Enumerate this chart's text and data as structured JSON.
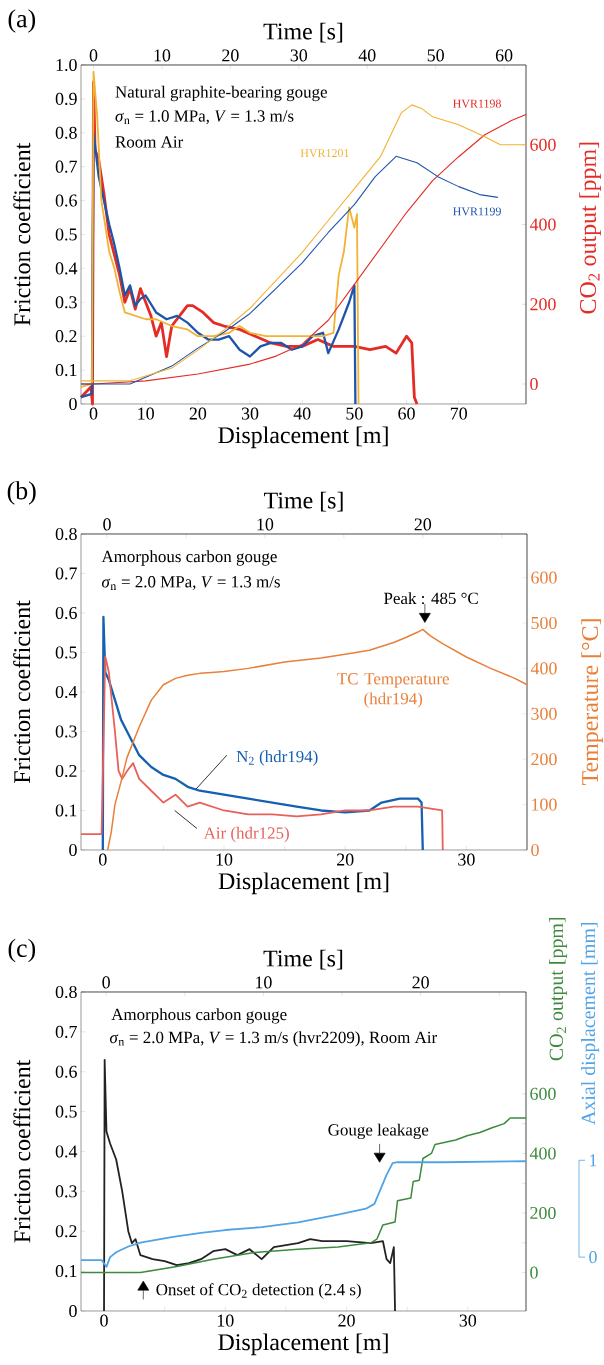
{
  "chart_data": [
    {
      "type": "line",
      "title": "(a)",
      "xlabel": "Displacement [m]",
      "x2label": "Time [s]",
      "ylabel": "Friction coefficient",
      "y2label": "CO$_{2}$ output [ppm]",
      "xlim": [
        -2.4,
        82.9
      ],
      "xticks": [
        0,
        10,
        20,
        30,
        40,
        50,
        60,
        70
      ],
      "x2lim": [
        -1.83,
        63.2
      ],
      "x2ticks": [
        0,
        10,
        20,
        30,
        40,
        50,
        60
      ],
      "ylim": [
        0,
        1
      ],
      "yticks": [
        0,
        0.1,
        0.2,
        0.3,
        0.4,
        0.5,
        0.6,
        0.7,
        0.8,
        0.9,
        {
          "value": 1,
          "label": "1.0"
        }
      ],
      "y2lim": [
        -50,
        800
      ],
      "y2ticks": [
        0,
        200,
        400,
        600
      ],
      "annotations": [
        "Natural graphite-bearing gouge",
        "*σ*$_{n}$ = 1.0 MPa, *V* = 1.3 m/s",
        "Room Air"
      ],
      "series": [
        {
          "color": "#e42b25",
          "x": [
            -2.4,
            -0.5,
            -0.2,
            0,
            0.3,
            1,
            2,
            3,
            4,
            5,
            6,
            7,
            8,
            9,
            10,
            11,
            12,
            13,
            14,
            15,
            17,
            18,
            19,
            21,
            23,
            25,
            28,
            31,
            34,
            37,
            40,
            43,
            46,
            50,
            53,
            56,
            58,
            60,
            61,
            61.5,
            62
          ],
          "values": [
            0.02,
            0.05,
            0,
            0.95,
            0.75,
            0.72,
            0.62,
            0.5,
            0.44,
            0.38,
            0.3,
            0.34,
            0.28,
            0.34,
            0.3,
            0.26,
            0.2,
            0.24,
            0.14,
            0.23,
            0.27,
            0.29,
            0.29,
            0.27,
            0.24,
            0.23,
            0.22,
            0.2,
            0.18,
            0.17,
            0.17,
            0.19,
            0.17,
            0.17,
            0.16,
            0.17,
            0.15,
            0.2,
            0.18,
            0.02,
            0
          ]
        },
        {
          "color": "#1f55a8",
          "x": [
            -2.4,
            -0.3,
            0,
            1,
            2,
            3,
            4,
            5,
            6,
            7,
            8,
            9,
            10,
            12,
            14,
            16,
            18,
            20,
            22,
            24,
            26,
            28,
            30,
            32,
            34,
            36,
            38,
            40,
            42,
            44,
            45,
            47,
            49,
            50,
            50.2
          ],
          "values": [
            0.02,
            0.03,
            0.8,
            0.67,
            0.6,
            0.53,
            0.47,
            0.4,
            0.32,
            0.35,
            0.29,
            0.31,
            0.32,
            0.27,
            0.25,
            0.26,
            0.24,
            0.21,
            0.19,
            0.19,
            0.2,
            0.16,
            0.14,
            0.17,
            0.18,
            0.18,
            0.16,
            0.17,
            0.2,
            0.21,
            0.15,
            0.22,
            0.3,
            0.35,
            0
          ]
        },
        {
          "color": "#f2b233",
          "x": [
            -2.4,
            -0.3,
            0,
            0.7,
            1.5,
            3,
            4,
            5,
            6,
            8,
            10,
            12,
            15,
            18,
            20,
            23,
            26,
            28,
            30,
            33,
            36,
            40,
            44,
            46,
            47,
            48,
            49,
            50,
            50.5,
            50.8
          ],
          "values": [
            0.05,
            0.06,
            0.98,
            0.85,
            0.6,
            0.45,
            0.4,
            0.33,
            0.27,
            0.26,
            0.25,
            0.25,
            0.23,
            0.22,
            0.2,
            0.2,
            0.21,
            0.23,
            0.21,
            0.2,
            0.2,
            0.2,
            0.2,
            0.21,
            0.38,
            0.45,
            0.58,
            0.52,
            0.56,
            0
          ]
        },
        {
          "name": "HVR1198",
          "axis": "y2",
          "color": "#e42b25",
          "x": [
            -2.4,
            0,
            10,
            20,
            30,
            35,
            40,
            45,
            50,
            55,
            60,
            65,
            70,
            75,
            80,
            82.9
          ],
          "values": [
            0,
            0,
            8,
            25,
            50,
            70,
            100,
            160,
            250,
            340,
            430,
            510,
            570,
            625,
            660,
            676
          ]
        },
        {
          "name": "HVR1199",
          "axis": "y2",
          "color": "#1f55a8",
          "x": [
            -2.4,
            7,
            10,
            15,
            20,
            25,
            30,
            35,
            40,
            45,
            50,
            54,
            58,
            62,
            66,
            70,
            74,
            77.5
          ],
          "values": [
            0,
            0,
            17,
            45,
            90,
            130,
            177,
            240,
            304,
            380,
            450,
            520,
            571,
            555,
            520,
            495,
            475,
            468
          ]
        },
        {
          "name": "HVR1201",
          "axis": "y2",
          "color": "#f2b233",
          "x": [
            -2.4,
            7,
            10,
            15,
            20,
            25,
            30,
            35,
            40,
            45,
            50,
            55,
            59,
            61,
            63,
            65,
            70,
            75,
            78,
            82.9
          ],
          "values": [
            8,
            8,
            20,
            40,
            85,
            135,
            190,
            260,
            330,
            410,
            490,
            570,
            680,
            700,
            690,
            670,
            650,
            620,
            600,
            600
          ]
        }
      ]
    },
    {
      "type": "line",
      "title": "(b)",
      "xlabel": "Displacement [m]",
      "x2label": "Time [s]",
      "ylabel": "Friction coefficient",
      "y2label": "Temperature [°C]",
      "xlim": [
        -1.8,
        35.0
      ],
      "xticks": [
        0,
        {
          "value": 5,
          "label": null
        },
        10,
        {
          "value": 15,
          "label": null
        },
        20,
        {
          "value": 25,
          "label": null
        },
        30
      ],
      "x2lim": [
        -1.65,
        26.6
      ],
      "x2ticks": [
        0,
        {
          "value": 5,
          "label": null
        },
        10,
        {
          "value": 15,
          "label": null
        },
        20,
        {
          "value": 25,
          "label": null
        }
      ],
      "ylim": [
        0,
        0.8
      ],
      "yticks": [
        0,
        0.1,
        0.2,
        0.3,
        0.4,
        0.5,
        0.6,
        0.7,
        0.8
      ],
      "y2lim": [
        0,
        696
      ],
      "y2ticks": [
        0,
        100,
        200,
        300,
        400,
        500,
        600
      ],
      "annotations": [
        "Amorphous carbon gouge",
        "*σ*$_{n}$ = 2.0 MPa, *V* = 1.3 m/s",
        "Peak : 485 °C"
      ],
      "series": [
        {
          "name": "N$_{2}$ (hdr194)",
          "color": "#1560b0",
          "x": [
            0,
            0.05,
            0.2,
            0.5,
            1,
            1.5,
            2,
            2.5,
            3,
            4,
            5,
            6,
            7,
            8,
            10,
            12,
            14,
            16,
            18,
            20,
            22,
            23,
            24.5,
            26,
            26.3,
            26.4
          ],
          "values": [
            0,
            0.59,
            0.45,
            0.43,
            0.38,
            0.33,
            0.3,
            0.27,
            0.24,
            0.21,
            0.19,
            0.18,
            0.16,
            0.15,
            0.14,
            0.13,
            0.12,
            0.11,
            0.1,
            0.095,
            0.1,
            0.12,
            0.13,
            0.13,
            0.12,
            0
          ]
        },
        {
          "name": "Air (hdr125)",
          "color": "#e8605a",
          "x": [
            -1.8,
            -0.1,
            0.2,
            0.5,
            1,
            1.3,
            1.6,
            2,
            2.5,
            3,
            4,
            5,
            6,
            7,
            8,
            10,
            12,
            14,
            16,
            18,
            20,
            22,
            24,
            26,
            28,
            28.05
          ],
          "values": [
            0.04,
            0.04,
            0.49,
            0.45,
            0.3,
            0.2,
            0.18,
            0.2,
            0.22,
            0.18,
            0.15,
            0.12,
            0.14,
            0.11,
            0.12,
            0.1,
            0.09,
            0.09,
            0.085,
            0.09,
            0.1,
            0.1,
            0.11,
            0.11,
            0.1,
            0
          ]
        },
        {
          "name": "TC Temperature (hdr194)",
          "axis": "y2",
          "color": "#e8803a",
          "x": [
            0.4,
            0.7,
            1,
            1.5,
            2,
            3,
            4,
            5,
            6,
            7,
            8,
            9,
            10,
            12,
            15,
            18,
            20,
            22,
            24,
            25,
            26,
            26.4,
            27,
            28,
            30,
            32,
            34,
            35
          ],
          "values": [
            0,
            40,
            100,
            150,
            204,
            271,
            330,
            364,
            378,
            385,
            389,
            391,
            393,
            400,
            414,
            423,
            431,
            440,
            457,
            468,
            480,
            486,
            472,
            455,
            425,
            400,
            378,
            364
          ]
        }
      ]
    },
    {
      "type": "line",
      "title": "(c)",
      "xlabel": "Displacement [m]",
      "x2label": "Time [s]",
      "ylabel": "Friction coefficient",
      "y2label": "CO$_{2}$ output [ppm]",
      "y3label": "Axial displacement [mm]",
      "xlim": [
        -1.9,
        34.8
      ],
      "xticks": [
        0,
        {
          "value": 5,
          "label": null
        },
        10,
        {
          "value": 15,
          "label": null
        },
        20,
        {
          "value": 25,
          "label": null
        },
        30
      ],
      "x2lim": [
        -1.6,
        26.7
      ],
      "x2ticks": [
        0,
        {
          "value": 5,
          "label": null
        },
        10,
        {
          "value": 15,
          "label": null
        },
        20,
        {
          "value": 25,
          "label": null
        }
      ],
      "ylim": [
        0,
        0.8
      ],
      "yticks": [
        0,
        0.1,
        0.2,
        0.3,
        0.4,
        0.5,
        0.6,
        0.7,
        0.8
      ],
      "y2lim": [
        -129,
        942
      ],
      "y2ticks": [
        0,
        {
          "value": 100,
          "label": null
        },
        200,
        {
          "value": 300,
          "label": null
        },
        400,
        {
          "value": 500,
          "label": null
        },
        600
      ],
      "y3lim": [
        -0.556,
        2.738
      ],
      "y3ticks": [
        0,
        1
      ],
      "annotations": [
        "Amorphous carbon gouge",
        "*σ*$_{n}$ = 2.0 MPa, *V* = 1.3 m/s (hvr2209), Room Air",
        "Gouge leakage",
        "Onset of CO$_{2}$ detection (2.4 s)"
      ],
      "series": [
        {
          "color": "#222222",
          "x": [
            0,
            0.05,
            0.2,
            0.5,
            1,
            1.5,
            2,
            2.3,
            2.6,
            3,
            4,
            5,
            6,
            7,
            8,
            9,
            10,
            11,
            12,
            13,
            14,
            15,
            16,
            17,
            18,
            20,
            22,
            23,
            23.3,
            23.6,
            23.9,
            24
          ],
          "values": [
            0,
            0.63,
            0.45,
            0.42,
            0.38,
            0.3,
            0.2,
            0.17,
            0.18,
            0.14,
            0.13,
            0.125,
            0.115,
            0.12,
            0.13,
            0.15,
            0.155,
            0.14,
            0.155,
            0.13,
            0.16,
            0.165,
            0.17,
            0.18,
            0.175,
            0.175,
            0.17,
            0.175,
            0.13,
            0.12,
            0.16,
            0
          ]
        },
        {
          "axis": "y2",
          "color": "#3d8a3d",
          "x": [
            -1.9,
            3,
            6,
            9,
            12.4,
            16,
            19.3,
            22,
            22.5,
            23,
            24,
            24.2,
            25.3,
            25.5,
            26,
            26.3,
            27,
            27.3,
            29,
            30,
            31,
            32,
            33,
            33.5,
            34.8
          ],
          "values": [
            0,
            0,
            20,
            45,
            67,
            78,
            86,
            100,
            112,
            160,
            170,
            241,
            250,
            306,
            310,
            383,
            400,
            430,
            445,
            460,
            470,
            486,
            500,
            519,
            519
          ]
        },
        {
          "axis": "y3",
          "color": "#4fa3e6",
          "x": [
            -1.9,
            -0.2,
            0.2,
            0.5,
            1,
            2,
            3,
            5.7,
            8,
            10,
            13,
            16,
            19.3,
            21.6,
            22.3,
            22.8,
            23.3,
            23.8,
            24.2,
            28,
            34.8
          ],
          "values": [
            -0.03,
            -0.03,
            -0.1,
            0,
            0.05,
            0.11,
            0.15,
            0.21,
            0.25,
            0.28,
            0.31,
            0.36,
            0.44,
            0.5,
            0.55,
            0.7,
            0.85,
            0.97,
            0.98,
            0.98,
            0.99
          ]
        }
      ]
    }
  ]
}
